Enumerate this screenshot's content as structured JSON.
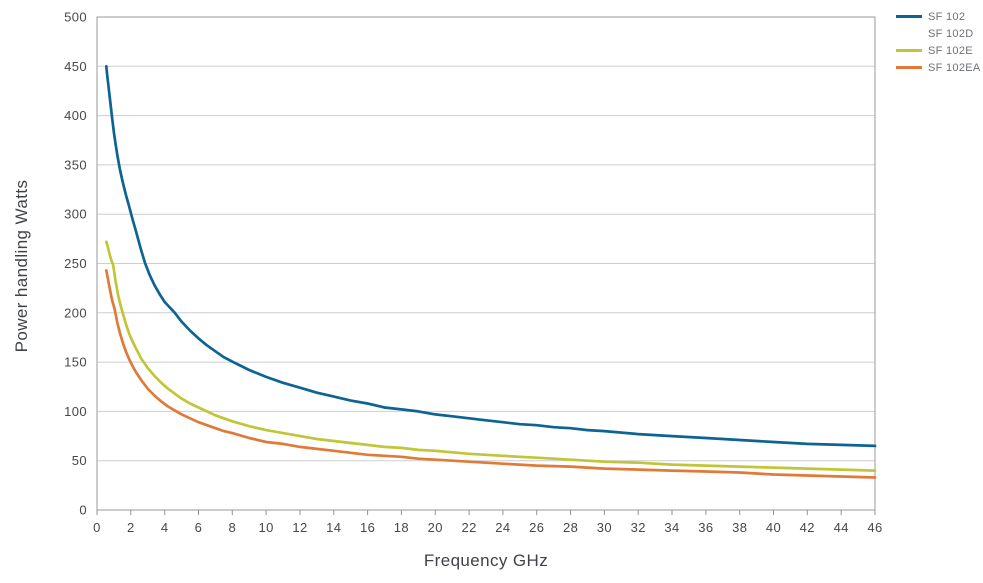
{
  "chart_data": {
    "type": "line",
    "title": "",
    "xlabel": "Frequency GHz",
    "ylabel": "Power handling Watts",
    "xlim": [
      0,
      46
    ],
    "ylim": [
      0,
      500
    ],
    "xticks": [
      0,
      2,
      4,
      6,
      8,
      10,
      12,
      14,
      16,
      18,
      20,
      22,
      24,
      26,
      28,
      30,
      32,
      34,
      36,
      38,
      40,
      42,
      44,
      46
    ],
    "yticks": [
      0,
      50,
      100,
      150,
      200,
      250,
      300,
      350,
      400,
      450,
      500
    ],
    "grid": "horizontal-only",
    "legend_position": "top-right-outside",
    "series": [
      {
        "name": "SF 102",
        "color": "#0d6394",
        "points": [
          [
            0.55,
            450
          ],
          [
            0.6,
            442
          ],
          [
            0.7,
            427
          ],
          [
            0.8,
            412
          ],
          [
            0.9,
            397
          ],
          [
            1,
            383
          ],
          [
            1.1,
            371
          ],
          [
            1.2,
            360
          ],
          [
            1.35,
            346
          ],
          [
            1.5,
            334
          ],
          [
            1.7,
            320
          ],
          [
            1.9,
            308
          ],
          [
            2.1,
            295
          ],
          [
            2.3,
            283
          ],
          [
            2.6,
            264
          ],
          [
            2.85,
            250
          ],
          [
            3.1,
            239
          ],
          [
            3.4,
            228
          ],
          [
            3.7,
            219
          ],
          [
            4,
            211
          ],
          [
            4.6,
            200
          ],
          [
            5,
            191
          ],
          [
            5.5,
            182
          ],
          [
            6,
            174
          ],
          [
            6.5,
            167
          ],
          [
            7,
            161
          ],
          [
            7.5,
            155
          ],
          [
            8.05,
            150
          ],
          [
            9,
            142
          ],
          [
            10,
            135
          ],
          [
            11,
            129
          ],
          [
            12,
            124
          ],
          [
            13,
            119
          ],
          [
            14,
            115
          ],
          [
            15,
            111
          ],
          [
            16,
            108
          ],
          [
            17,
            104
          ],
          [
            18,
            102
          ],
          [
            19,
            100
          ],
          [
            20,
            97
          ],
          [
            21,
            95
          ],
          [
            22,
            93
          ],
          [
            23,
            91
          ],
          [
            24,
            89
          ],
          [
            25,
            87
          ],
          [
            26,
            86
          ],
          [
            27,
            84
          ],
          [
            28,
            83
          ],
          [
            29,
            81
          ],
          [
            30,
            80
          ],
          [
            32,
            77
          ],
          [
            34,
            75
          ],
          [
            36,
            73
          ],
          [
            38,
            71
          ],
          [
            40,
            69
          ],
          [
            42,
            67
          ],
          [
            44,
            66
          ],
          [
            46,
            65
          ]
        ]
      },
      {
        "name": "SF 102D",
        "color": "#ffffff",
        "points": []
      },
      {
        "name": "SF 102E",
        "color": "#c0c637",
        "points": [
          [
            0.55,
            272
          ],
          [
            0.65,
            266
          ],
          [
            0.75,
            259
          ],
          [
            0.85,
            253
          ],
          [
            0.95,
            249
          ],
          [
            1.1,
            232
          ],
          [
            1.25,
            218
          ],
          [
            1.4,
            207
          ],
          [
            1.55,
            198
          ],
          [
            1.7,
            189
          ],
          [
            1.9,
            179
          ],
          [
            2.1,
            171
          ],
          [
            2.3,
            164
          ],
          [
            2.6,
            154
          ],
          [
            3,
            144
          ],
          [
            3.4,
            136
          ],
          [
            3.8,
            129
          ],
          [
            4.2,
            123
          ],
          [
            4.6,
            118
          ],
          [
            5,
            113
          ],
          [
            5.5,
            108
          ],
          [
            6,
            104
          ],
          [
            6.5,
            100
          ],
          [
            7,
            96
          ],
          [
            7.5,
            93
          ],
          [
            8,
            90
          ],
          [
            9,
            85
          ],
          [
            10,
            81
          ],
          [
            11,
            78
          ],
          [
            12,
            75
          ],
          [
            13,
            72
          ],
          [
            14,
            70
          ],
          [
            15,
            68
          ],
          [
            16,
            66
          ],
          [
            17,
            64
          ],
          [
            18,
            63
          ],
          [
            19,
            61
          ],
          [
            20,
            60
          ],
          [
            21,
            58.5
          ],
          [
            22,
            57
          ],
          [
            23,
            56
          ],
          [
            24,
            55
          ],
          [
            25,
            54
          ],
          [
            26,
            53
          ],
          [
            28,
            51
          ],
          [
            30,
            49
          ],
          [
            32,
            48
          ],
          [
            34,
            46
          ],
          [
            36,
            45
          ],
          [
            38,
            44
          ],
          [
            40,
            43
          ],
          [
            42,
            42
          ],
          [
            44,
            41
          ],
          [
            46,
            40
          ]
        ]
      },
      {
        "name": "SF 102EA",
        "color": "#e07a39",
        "points": [
          [
            0.55,
            243
          ],
          [
            0.65,
            234
          ],
          [
            0.75,
            225
          ],
          [
            0.85,
            216
          ],
          [
            0.95,
            209
          ],
          [
            1.05,
            203
          ],
          [
            1.2,
            190
          ],
          [
            1.35,
            180
          ],
          [
            1.5,
            171
          ],
          [
            1.7,
            161
          ],
          [
            1.9,
            153
          ],
          [
            2.1,
            146
          ],
          [
            2.3,
            140
          ],
          [
            2.6,
            132
          ],
          [
            3,
            123
          ],
          [
            3.4,
            116
          ],
          [
            3.8,
            110
          ],
          [
            4.2,
            105
          ],
          [
            4.6,
            101
          ],
          [
            5,
            97
          ],
          [
            5.5,
            93
          ],
          [
            6,
            89
          ],
          [
            6.5,
            86
          ],
          [
            7,
            83
          ],
          [
            7.5,
            80
          ],
          [
            8,
            78
          ],
          [
            9,
            73
          ],
          [
            10,
            69
          ],
          [
            11,
            67
          ],
          [
            12,
            64
          ],
          [
            13,
            62
          ],
          [
            14,
            60
          ],
          [
            15,
            58
          ],
          [
            16,
            56
          ],
          [
            17,
            55
          ],
          [
            18,
            54
          ],
          [
            19,
            52
          ],
          [
            20,
            51
          ],
          [
            22,
            49
          ],
          [
            24,
            47
          ],
          [
            26,
            45
          ],
          [
            28,
            44
          ],
          [
            30,
            42
          ],
          [
            32,
            41
          ],
          [
            34,
            40
          ],
          [
            36,
            39
          ],
          [
            38,
            38
          ],
          [
            40,
            36
          ],
          [
            42,
            35
          ],
          [
            44,
            34
          ],
          [
            46,
            33
          ]
        ]
      }
    ]
  },
  "colors": {
    "background": "#ffffff",
    "grid": "#cbcfd2",
    "border": "#a8abad",
    "tick_mark": "#8f9295",
    "axis_text": "#45484c",
    "axis_title_text": "#3f4246",
    "legend_text": "#6e7276"
  }
}
